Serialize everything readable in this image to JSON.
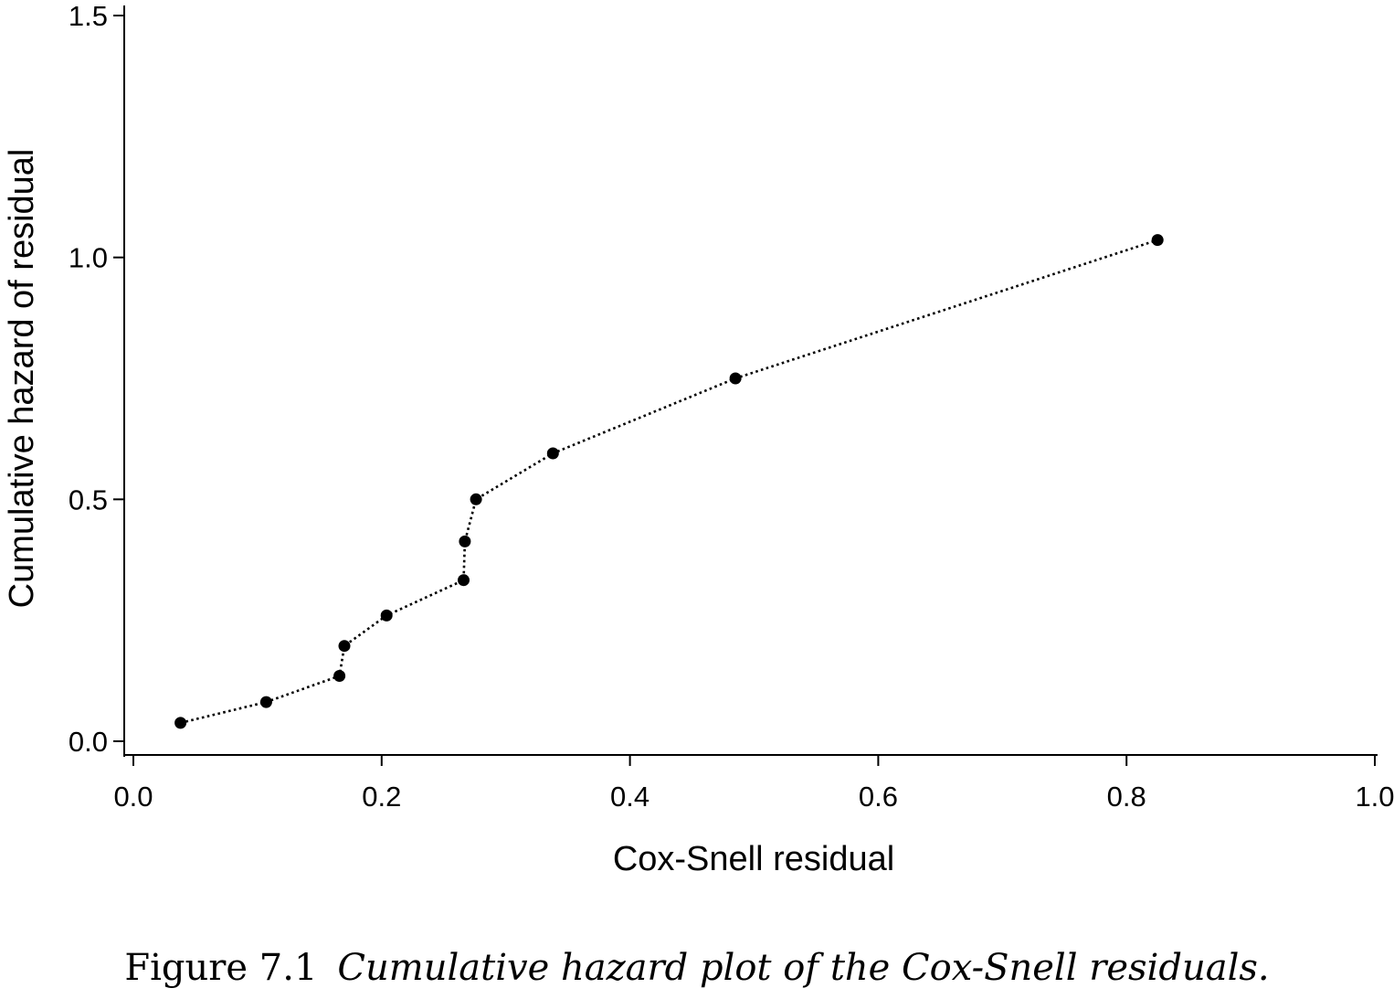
{
  "chart_data": {
    "type": "line",
    "series": [
      {
        "x": [
          0.038,
          0.107,
          0.166,
          0.17,
          0.204,
          0.266,
          0.267,
          0.276,
          0.338,
          0.485,
          0.825
        ],
        "y": [
          0.038,
          0.081,
          0.135,
          0.197,
          0.26,
          0.333,
          0.413,
          0.5,
          0.595,
          0.75,
          1.036
        ]
      }
    ],
    "marker": "filled-circle",
    "line_style": "dotted",
    "color": "#000000",
    "xlabel": "Cox-Snell residual",
    "ylabel": "Cumulative hazard of residual",
    "xlim": [
      0.0,
      1.0
    ],
    "ylim": [
      0.0,
      1.5
    ],
    "xticks": [
      "0.0",
      "0.2",
      "0.4",
      "0.6",
      "0.8",
      "1.0"
    ],
    "yticks": [
      "0.0",
      "0.5",
      "1.0",
      "1.5"
    ],
    "grid": false
  },
  "caption": {
    "label": "Figure 7.1",
    "text": "Cumulative hazard plot of the Cox-Snell residuals."
  }
}
